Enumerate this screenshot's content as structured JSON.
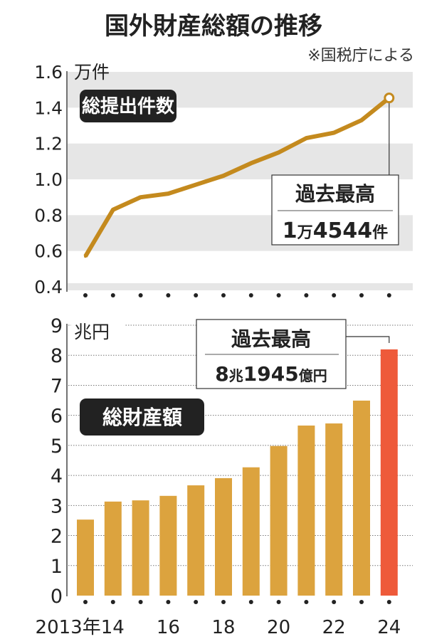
{
  "title": "国外財産総額の推移",
  "source": "※国税庁による",
  "colors": {
    "line": "#c48a1e",
    "bar": "#dca33e",
    "bar_highlight": "#ee5a3a",
    "band": "#e6e6e6",
    "label_bg": "#222222"
  },
  "chart_data": [
    {
      "type": "line",
      "label": "総提出件数",
      "unit": "万件",
      "x": [
        2013,
        2014,
        2015,
        2016,
        2017,
        2018,
        2019,
        2020,
        2021,
        2022,
        2023,
        2024
      ],
      "values": [
        0.57,
        0.83,
        0.9,
        0.92,
        0.97,
        1.02,
        1.09,
        1.15,
        1.23,
        1.26,
        1.33,
        1.4544
      ],
      "ylim": [
        0.4,
        1.6
      ],
      "yticks": [
        "0.4",
        "0.6",
        "0.8",
        "1.0",
        "1.2",
        "1.4",
        "1.6"
      ],
      "annotation": {
        "line1": "過去最高",
        "line2_num1": "1",
        "line2_unit1": "万",
        "line2_num2": "4544",
        "line2_unit2": "件"
      }
    },
    {
      "type": "bar",
      "label": "総財産額",
      "unit": "兆円",
      "x": [
        2013,
        2014,
        2015,
        2016,
        2017,
        2018,
        2019,
        2020,
        2021,
        2022,
        2023,
        2024
      ],
      "values": [
        2.53,
        3.13,
        3.17,
        3.32,
        3.67,
        3.91,
        4.27,
        4.98,
        5.66,
        5.73,
        6.49,
        8.1945
      ],
      "ylim": [
        0,
        9
      ],
      "yticks": [
        "0",
        "1",
        "2",
        "3",
        "4",
        "5",
        "6",
        "7",
        "8",
        "9"
      ],
      "xticks": [
        {
          "year": 2013,
          "label": "2013年14"
        },
        {
          "year": 2016,
          "label": "16"
        },
        {
          "year": 2018,
          "label": "18"
        },
        {
          "year": 2020,
          "label": "20"
        },
        {
          "year": 2022,
          "label": "22"
        },
        {
          "year": 2024,
          "label": "24"
        }
      ],
      "annotation": {
        "line1": "過去最高",
        "line2_num1": "8",
        "line2_unit1": "兆",
        "line2_num2": "1945",
        "line2_unit2": "億円"
      }
    }
  ]
}
